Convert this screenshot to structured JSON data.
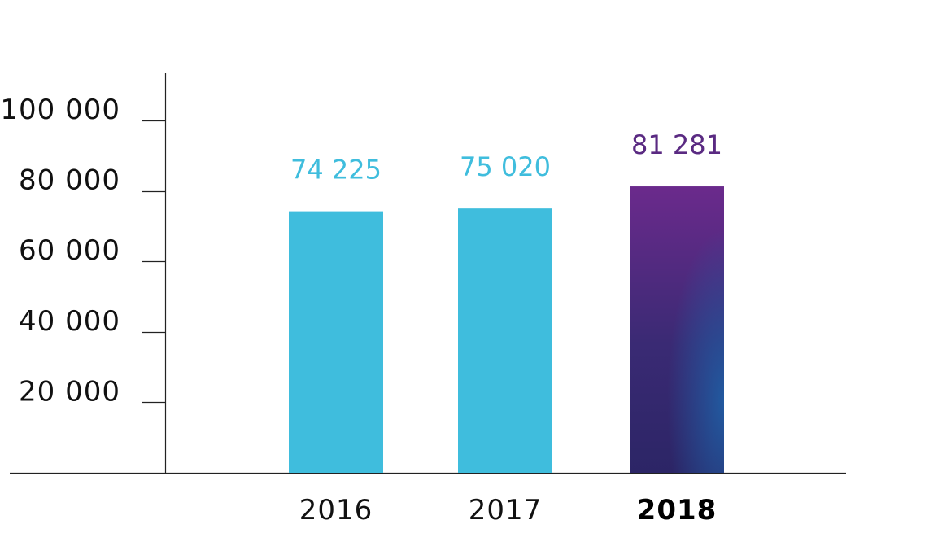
{
  "chart_data": {
    "type": "bar",
    "categories": [
      "2016",
      "2017",
      "2018"
    ],
    "values": [
      74225,
      75020,
      81281
    ],
    "value_labels": [
      "74 225",
      "75 020",
      "81 281"
    ],
    "y_ticks": [
      {
        "value": 20000,
        "label": "20 000"
      },
      {
        "value": 40000,
        "label": "40 000"
      },
      {
        "value": 60000,
        "label": "60 000"
      },
      {
        "value": 80000,
        "label": "80 000"
      },
      {
        "value": 100000,
        "label": "100 000"
      }
    ],
    "ylim": [
      0,
      100000
    ],
    "title": "",
    "xlabel": "",
    "ylabel": "",
    "grid": false,
    "highlight_category": "2018",
    "colors": {
      "default_bar": "#3fbddd",
      "highlight_bar_top": "#6b2a8c",
      "highlight_bar_bottom": "#2c2566",
      "highlight_bar_accent": "#1f5fa5",
      "default_value_label": "#3fbddd",
      "highlight_value_label": "#5a2a82",
      "axis": "#222222"
    }
  }
}
